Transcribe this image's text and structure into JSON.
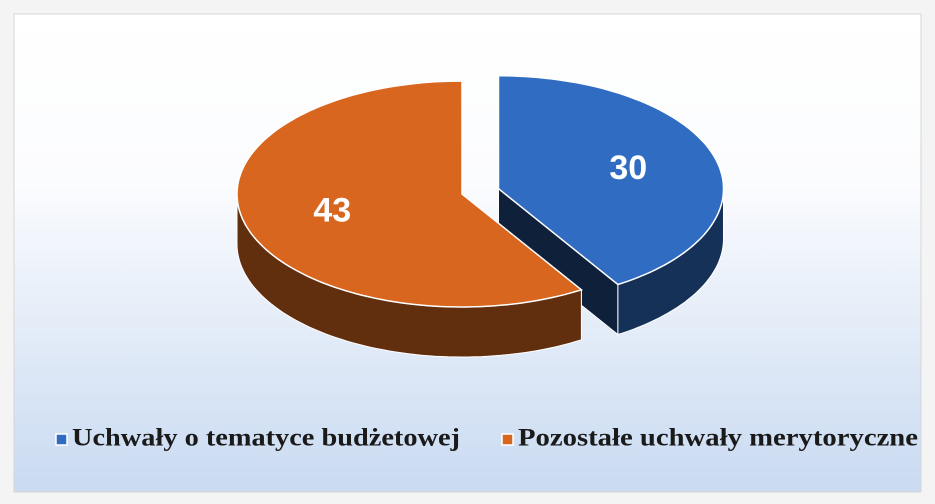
{
  "chart_data": {
    "type": "pie",
    "categories": [
      "Uchwały o tematyce budżetowej",
      "Pozostałe uchwały merytoryczne"
    ],
    "values": [
      30,
      43
    ],
    "colors": [
      "#2f6cc2",
      "#d8661e"
    ],
    "legend": "bottom"
  }
}
